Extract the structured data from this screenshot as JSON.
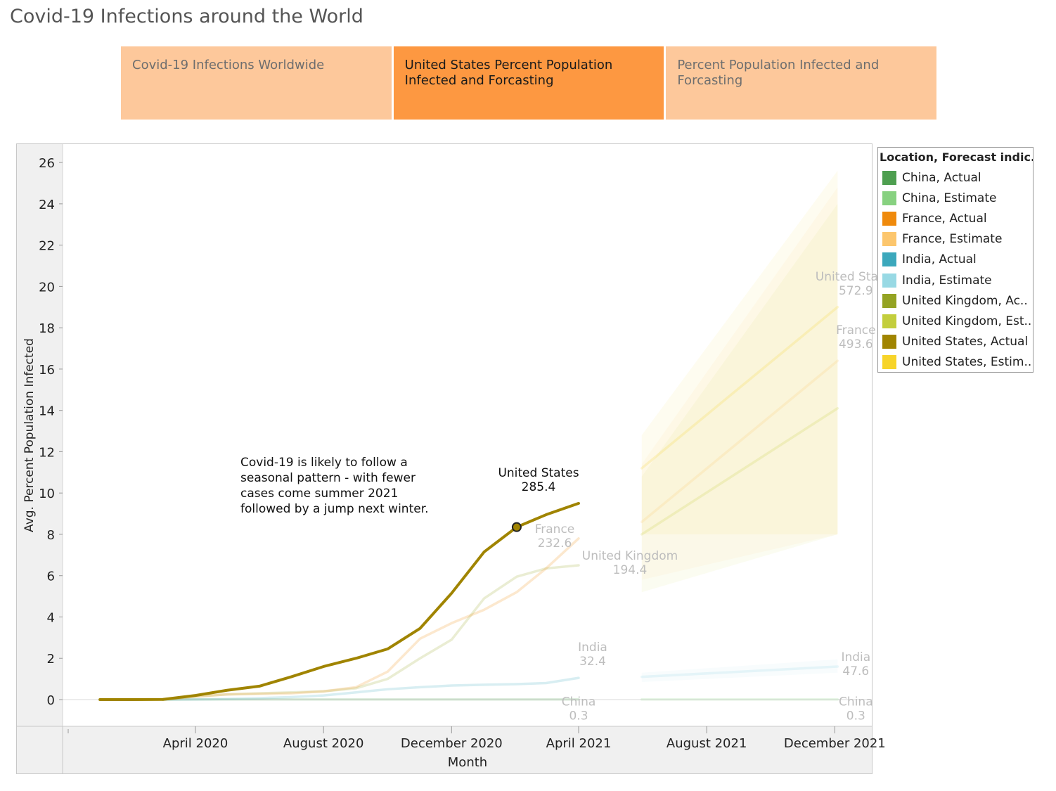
{
  "page_title": "Covid-19 Infections around the World",
  "tabs": [
    {
      "label": "Covid-19 Infections Worldwide",
      "active": false
    },
    {
      "label": "United States Percent Population Infected and Forcasting",
      "active": true
    },
    {
      "label": "Percent Population Infected and Forcasting",
      "active": false
    }
  ],
  "legend": {
    "title": "Location, Forecast indic..",
    "items": [
      {
        "label": "China, Actual",
        "color": "#4e9f50"
      },
      {
        "label": "China, Estimate",
        "color": "#87d180"
      },
      {
        "label": "France, Actual",
        "color": "#ef8a0c"
      },
      {
        "label": "France, Estimate",
        "color": "#fcc66d"
      },
      {
        "label": "India, Actual",
        "color": "#3ca8bc"
      },
      {
        "label": "India, Estimate",
        "color": "#98d9e4"
      },
      {
        "label": "United Kingdom, Ac..",
        "color": "#94a323"
      },
      {
        "label": "United Kingdom, Est..",
        "color": "#c3ce3d"
      },
      {
        "label": "United States, Actual",
        "color": "#a08400"
      },
      {
        "label": "United States, Estim..",
        "color": "#f7d42a"
      }
    ]
  },
  "chart_data": {
    "type": "line",
    "xlabel": "Month",
    "ylabel": "Avg. Percent Population Infected",
    "ylim": [
      0,
      26
    ],
    "yticks": [
      0,
      2,
      4,
      6,
      8,
      10,
      12,
      14,
      16,
      18,
      20,
      22,
      24,
      26
    ],
    "xlim": [
      "2020-01-01",
      "2022-01-01"
    ],
    "xticks": [
      {
        "date": "2020-04-01",
        "label": "April 2020"
      },
      {
        "date": "2020-08-01",
        "label": "August 2020"
      },
      {
        "date": "2020-12-01",
        "label": "December 2020"
      },
      {
        "date": "2021-04-01",
        "label": "April 2021"
      },
      {
        "date": "2021-08-01",
        "label": "August 2021"
      },
      {
        "date": "2021-12-01",
        "label": "December 2021"
      }
    ],
    "grid": false,
    "legend_position": "right",
    "annotation": [
      "Covid-19 is likely to follow a",
      "seasonal pattern - with fewer",
      "cases come summer 2021",
      "followed by a jump next winter."
    ],
    "series": [
      {
        "name": "China, Actual",
        "color": "#4e9f50",
        "highlighted": false,
        "x": [
          "2020-03-01",
          "2020-04-01",
          "2020-06-01",
          "2020-09-01",
          "2020-12-01",
          "2021-04-01"
        ],
        "y": [
          0,
          0.01,
          0.01,
          0.01,
          0.01,
          0.01
        ],
        "end_label": [
          "China",
          "0.3"
        ]
      },
      {
        "name": "China, Estimate",
        "color": "#87d180",
        "highlighted": false,
        "x": [
          "2021-05-01",
          "2021-12-01"
        ],
        "y": [
          0.01,
          0.01
        ],
        "end_label": [
          "China",
          "0.3"
        ]
      },
      {
        "name": "India, Actual",
        "color": "#3ca8bc",
        "highlighted": false,
        "x": [
          "2020-03-01",
          "2020-04-01",
          "2020-05-01",
          "2020-06-01",
          "2020-07-01",
          "2020-08-01",
          "2020-09-01",
          "2020-10-01",
          "2020-11-01",
          "2020-12-01",
          "2021-01-01",
          "2021-02-01",
          "2021-03-01",
          "2021-04-01"
        ],
        "y": [
          0,
          0.01,
          0.03,
          0.07,
          0.12,
          0.2,
          0.35,
          0.5,
          0.6,
          0.68,
          0.72,
          0.75,
          0.8,
          1.05
        ],
        "end_label": [
          "India",
          "32.4"
        ]
      },
      {
        "name": "India, Estimate",
        "color": "#98d9e4",
        "highlighted": false,
        "x": [
          "2021-05-01",
          "2021-12-01"
        ],
        "y": [
          1.1,
          1.6
        ],
        "band": [
          [
            0.85,
            1.3
          ],
          [
            1.3,
            1.95
          ]
        ],
        "end_label": [
          "India",
          "47.6"
        ]
      },
      {
        "name": "United Kingdom, Actual",
        "color": "#94a323",
        "highlighted": false,
        "x": [
          "2020-03-01",
          "2020-04-01",
          "2020-05-01",
          "2020-06-01",
          "2020-07-01",
          "2020-08-01",
          "2020-09-01",
          "2020-10-01",
          "2020-11-01",
          "2020-12-01",
          "2021-01-01",
          "2021-02-01",
          "2021-03-01",
          "2021-04-01"
        ],
        "y": [
          0,
          0.15,
          0.25,
          0.3,
          0.35,
          0.4,
          0.55,
          1.0,
          2.0,
          2.9,
          4.9,
          5.95,
          6.35,
          6.5
        ],
        "end_label": [
          "United Kingdom",
          "194.4"
        ]
      },
      {
        "name": "United Kingdom, Estimate",
        "color": "#c3ce3d",
        "highlighted": false,
        "x": [
          "2021-05-01",
          "2021-12-01"
        ],
        "y": [
          8.0,
          14.1
        ],
        "band": [
          [
            5.2,
            10.8
          ],
          [
            8.0,
            24.0
          ]
        ],
        "end_label": null
      },
      {
        "name": "France, Actual",
        "color": "#ef8a0c",
        "highlighted": false,
        "x": [
          "2020-03-01",
          "2020-04-01",
          "2020-05-01",
          "2020-06-01",
          "2020-07-01",
          "2020-08-01",
          "2020-09-01",
          "2020-10-01",
          "2020-11-01",
          "2020-12-01",
          "2021-01-01",
          "2021-02-01",
          "2021-03-01",
          "2021-04-01"
        ],
        "y": [
          0,
          0.15,
          0.25,
          0.28,
          0.3,
          0.4,
          0.6,
          1.35,
          2.95,
          3.7,
          4.35,
          5.2,
          6.35,
          7.8
        ],
        "end_label": [
          "France",
          "232.6"
        ]
      },
      {
        "name": "France, Estimate",
        "color": "#fcc66d",
        "highlighted": false,
        "x": [
          "2021-05-01",
          "2021-12-01"
        ],
        "y": [
          8.6,
          16.4
        ],
        "band": [
          [
            5.8,
            11.4
          ],
          [
            8.0,
            24.8
          ]
        ],
        "end_label": [
          "France",
          "493.6"
        ]
      },
      {
        "name": "United States, Actual",
        "color": "#a08400",
        "highlighted": true,
        "x": [
          "2020-01-01",
          "2020-02-01",
          "2020-03-01",
          "2020-04-01",
          "2020-05-01",
          "2020-06-01",
          "2020-07-01",
          "2020-08-01",
          "2020-09-01",
          "2020-10-01",
          "2020-11-01",
          "2020-12-01",
          "2021-01-01",
          "2021-02-01",
          "2021-03-01",
          "2021-04-01"
        ],
        "y": [
          0,
          0,
          0.01,
          0.2,
          0.45,
          0.65,
          1.1,
          1.6,
          2.0,
          2.45,
          3.45,
          5.15,
          7.15,
          8.35,
          8.95,
          9.5
        ],
        "marker_index": 13,
        "end_label": [
          "United States",
          "285.4"
        ]
      },
      {
        "name": "United States, Estimate",
        "color": "#f7d42a",
        "highlighted": false,
        "x": [
          "2021-05-01",
          "2021-12-01"
        ],
        "y": [
          11.2,
          19.0
        ],
        "band": [
          [
            8.0,
            12.8
          ],
          [
            8.0,
            25.6
          ]
        ],
        "end_label": [
          "United States",
          "572.9"
        ]
      }
    ]
  }
}
